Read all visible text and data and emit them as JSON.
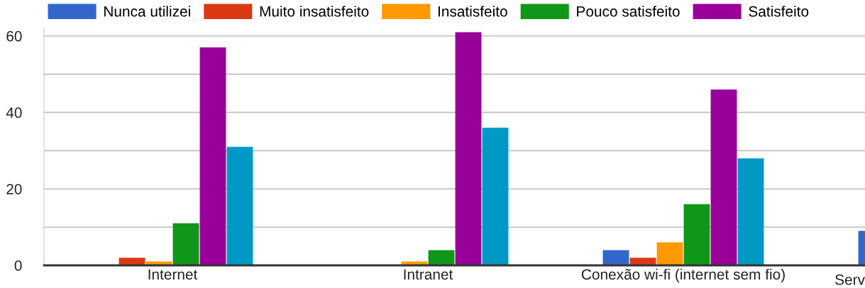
{
  "chart_data": {
    "type": "bar",
    "categories": [
      "Internet",
      "Intranet",
      "Conexão wi-fi (internet sem fio)",
      "Serv"
    ],
    "series": [
      {
        "name": "Nunca utilizei",
        "color": "#3366cc",
        "values": [
          0,
          0,
          4,
          9
        ]
      },
      {
        "name": "Muito insatisfeito",
        "color": "#dc3912",
        "values": [
          2,
          0,
          2,
          null
        ]
      },
      {
        "name": "Insatisfeito",
        "color": "#ff9900",
        "values": [
          1,
          1,
          6,
          null
        ]
      },
      {
        "name": "Pouco satisfeito",
        "color": "#109618",
        "values": [
          11,
          4,
          16,
          null
        ]
      },
      {
        "name": "Satisfeito",
        "color": "#990099",
        "values": [
          57,
          61,
          46,
          null
        ]
      },
      {
        "color": "#0099c6",
        "values": [
          31,
          36,
          28,
          null
        ]
      }
    ],
    "ylim": [
      0,
      62
    ],
    "yticks": [
      0,
      {
        "value": 10,
        "label": null
      },
      20,
      {
        "value": 30,
        "label": null
      },
      40,
      {
        "value": 50,
        "label": null
      },
      60
    ],
    "grid": "y",
    "legend": "top left"
  }
}
